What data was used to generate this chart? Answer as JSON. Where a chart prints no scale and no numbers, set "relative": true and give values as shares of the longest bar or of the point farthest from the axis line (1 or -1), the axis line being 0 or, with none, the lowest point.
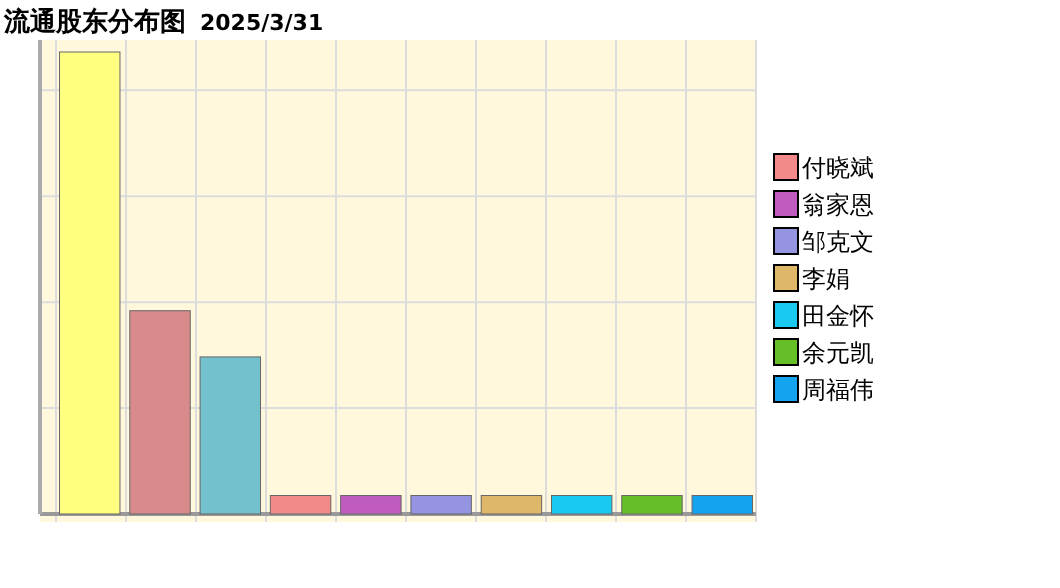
{
  "chart_data": {
    "type": "bar",
    "title": "流通股东分布图",
    "subtitle": "2025/3/31",
    "relative": true,
    "stacked": true,
    "categories": [
      null,
      null,
      null,
      null,
      null,
      null,
      null,
      null,
      null,
      null
    ],
    "series": [
      {
        "color": "#ffff80",
        "values": [
          1,
          null,
          null,
          null,
          null,
          null,
          null,
          null,
          null,
          null
        ]
      },
      {
        "color": "#d98b8b",
        "values": [
          null,
          0.44,
          null,
          null,
          null,
          null,
          null,
          null,
          null,
          null
        ]
      },
      {
        "color": "#72c1cc",
        "values": [
          null,
          null,
          0.34,
          null,
          null,
          null,
          null,
          null,
          null,
          null
        ]
      },
      {
        "name": "付晓斌",
        "color": "#f28a8a",
        "values": [
          null,
          null,
          null,
          0.04,
          null,
          null,
          null,
          null,
          null,
          null
        ]
      },
      {
        "name": "翁家恩",
        "color": "#c05cc0",
        "values": [
          null,
          null,
          null,
          null,
          0.04,
          null,
          null,
          null,
          null,
          null
        ]
      },
      {
        "name": "邹克文",
        "color": "#9494e0",
        "values": [
          null,
          null,
          null,
          null,
          null,
          0.04,
          null,
          null,
          null,
          null
        ]
      },
      {
        "name": "李娟",
        "color": "#deb868",
        "values": [
          null,
          null,
          null,
          null,
          null,
          null,
          0.04,
          null,
          null,
          null
        ]
      },
      {
        "name": "田金怀",
        "color": "#1ac9ef",
        "values": [
          null,
          null,
          null,
          null,
          null,
          null,
          null,
          0.04,
          null,
          null
        ]
      },
      {
        "name": "余元凯",
        "color": "#66bf26",
        "values": [
          null,
          null,
          null,
          null,
          null,
          null,
          null,
          null,
          0.04,
          null
        ]
      },
      {
        "name": "周福伟",
        "color": "#14a4ef",
        "values": [
          null,
          null,
          null,
          null,
          null,
          null,
          null,
          null,
          null,
          0.04
        ]
      }
    ],
    "grid": true,
    "legend": "right"
  }
}
